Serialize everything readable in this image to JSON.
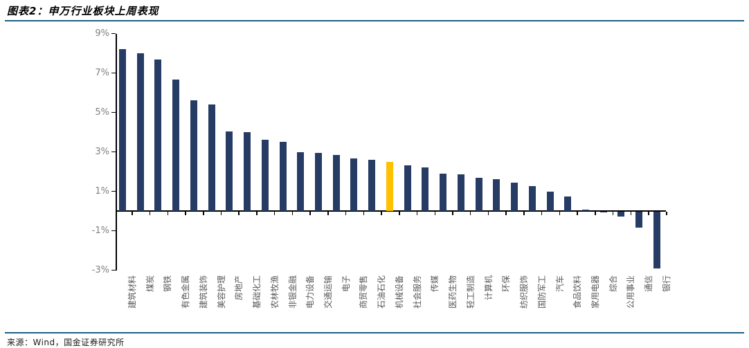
{
  "header": {
    "title": "图表2：申万行业板块上周表现"
  },
  "footer": {
    "source": "来源：Wind，国金证券研究所"
  },
  "colors": {
    "bar": "#263C64",
    "highlight": "#FFC000",
    "rule": "#1E5F85",
    "axis": "#000000",
    "ytick_label": "#808080",
    "xtick_label": "#595959"
  },
  "chart_data": {
    "type": "bar",
    "title": "申万行业板块上周表现",
    "xlabel": "",
    "ylabel": "",
    "categories": [
      "建筑材料",
      "煤炭",
      "钢铁",
      "有色金属",
      "建筑装饰",
      "美容护理",
      "房地产",
      "基础化工",
      "农林牧渔",
      "非银金融",
      "电力设备",
      "交通运输",
      "电子",
      "商贸零售",
      "石油石化",
      "机械设备",
      "社会服务",
      "传媒",
      "医药生物",
      "轻工制造",
      "计算机",
      "环保",
      "纺织服饰",
      "国防军工",
      "汽车",
      "食品饮料",
      "家用电器",
      "综合",
      "公用事业",
      "通信",
      "银行"
    ],
    "values": [
      8.2,
      8.0,
      7.7,
      6.65,
      5.6,
      5.4,
      4.05,
      4.0,
      3.6,
      3.5,
      3.0,
      2.95,
      2.85,
      2.65,
      2.6,
      2.5,
      2.3,
      2.2,
      1.9,
      1.85,
      1.7,
      1.6,
      1.45,
      1.25,
      1.0,
      0.75,
      0.08,
      -0.05,
      -0.25,
      -0.8,
      -2.9
    ],
    "unit": "%",
    "highlight_index": 15,
    "highlight_category": "机械设备",
    "ylim": [
      -3,
      9
    ],
    "yticks": [
      9,
      7,
      5,
      3,
      1,
      -1,
      -3
    ],
    "ytick_labels": [
      "9%",
      "7%",
      "5%",
      "3%",
      "1%",
      "-1%",
      "-3%"
    ],
    "grid": false,
    "legend": "none",
    "x_label_rotation": -90
  }
}
